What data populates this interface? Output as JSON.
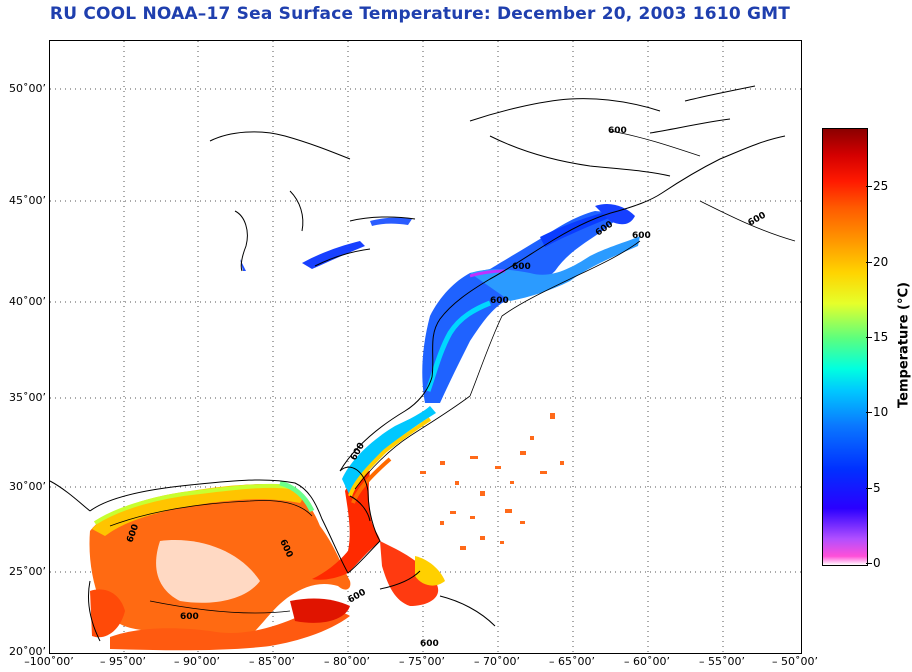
{
  "title": "RU COOL  NOAA–17  Sea Surface Temperature:  December 20, 2003 1610 GMT",
  "colorbar": {
    "label": "Temperature (°C)",
    "ticks": [
      "25",
      "20",
      "15",
      "10",
      "5",
      "0"
    ]
  },
  "latitudes": [
    "50˚00’",
    "45˚00’",
    "40˚00’",
    "35˚00’",
    "30˚00’",
    "25˚00’",
    "20˚00’"
  ],
  "longitudes": [
    "–100˚00’",
    "– 95˚00’",
    "– 90˚00’",
    "– 85˚00’",
    "– 80˚00’",
    "– 75˚00’",
    "– 70˚00’",
    "– 65˚00’",
    "– 60˚00’",
    "– 55˚00’",
    "– 50˚00’"
  ],
  "isobath_label": "600"
}
